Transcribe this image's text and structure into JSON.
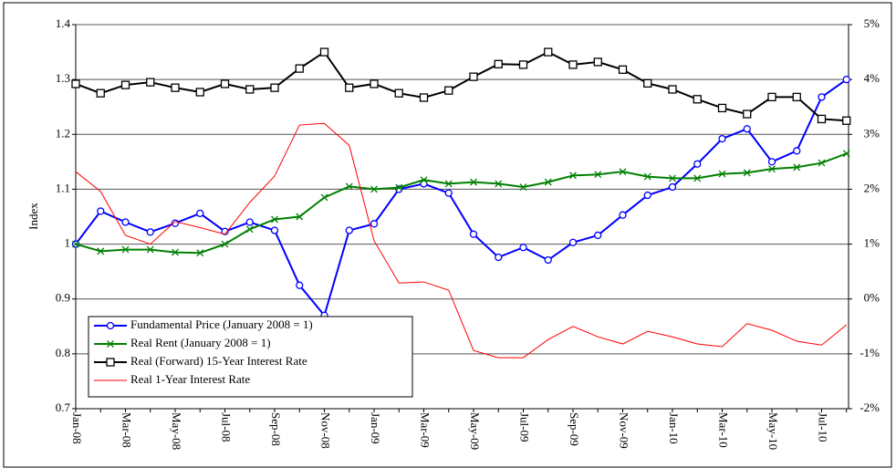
{
  "chart_data": {
    "type": "line",
    "categories": [
      "Jan-08",
      null,
      "Mar-08",
      null,
      "May-08",
      null,
      "Jul-08",
      null,
      "Sep-08",
      null,
      "Nov-08",
      null,
      "Jan-09",
      null,
      "Mar-09",
      null,
      "May-09",
      null,
      "Jul-09",
      null,
      "Sep-09",
      null,
      "Nov-09",
      null,
      "Jan-10",
      null,
      "Mar-10",
      null,
      "May-10",
      null,
      "Jul-10",
      null
    ],
    "ylabel": "Index",
    "ylim": [
      0.7,
      1.4
    ],
    "yticks": [
      0.7,
      0.8,
      0.9,
      1,
      1.1,
      1.2,
      1.3,
      1.4
    ],
    "y2lim": [
      -2,
      5
    ],
    "y2ticks": [
      {
        "value": -2,
        "label": "-2%"
      },
      {
        "value": -1,
        "label": "-1%"
      },
      {
        "value": 0,
        "label": "0%"
      },
      {
        "value": 1,
        "label": "1%"
      },
      {
        "value": 2,
        "label": "2%"
      },
      {
        "value": 3,
        "label": "3%"
      },
      {
        "value": 4,
        "label": "4%"
      },
      {
        "value": 5,
        "label": "5%"
      }
    ],
    "grid": true,
    "legend": "lower left",
    "series": [
      {
        "name": "Fundamental Price (January 2008 = 1)",
        "color": "#0000ff",
        "marker": "circle",
        "values": [
          1.0,
          1.06,
          1.04,
          1.022,
          1.038,
          1.056,
          1.023,
          1.04,
          1.025,
          0.925,
          0.87,
          1.025,
          1.037,
          1.1,
          1.11,
          1.093,
          1.018,
          0.976,
          0.994,
          0.971,
          1.003,
          1.016,
          1.053,
          1.089,
          1.104,
          1.146,
          1.192,
          1.21,
          1.15,
          1.17,
          1.268,
          1.3
        ]
      },
      {
        "name": "Real Rent (January 2008 = 1)",
        "color": "#008000",
        "marker": "x",
        "values": [
          1.0,
          0.987,
          0.99,
          0.99,
          0.985,
          0.984,
          1.0,
          1.027,
          1.045,
          1.05,
          1.085,
          1.105,
          1.1,
          1.103,
          1.117,
          1.11,
          1.113,
          1.11,
          1.104,
          1.113,
          1.125,
          1.127,
          1.132,
          1.123,
          1.12,
          1.12,
          1.128,
          1.13,
          1.137,
          1.14,
          1.148,
          1.165
        ]
      },
      {
        "name": "Real (Forward) 15-Year Interest Rate",
        "color": "#000000",
        "marker": "square",
        "axis": "y2",
        "values": [
          3.92,
          3.75,
          3.9,
          3.95,
          3.85,
          3.77,
          3.92,
          3.82,
          3.85,
          4.2,
          4.5,
          3.85,
          3.92,
          3.75,
          3.67,
          3.8,
          4.05,
          4.28,
          4.27,
          4.5,
          4.27,
          4.32,
          4.18,
          3.93,
          3.82,
          3.64,
          3.48,
          3.37,
          3.68,
          3.68,
          3.28,
          3.25
        ]
      },
      {
        "name": "Real 1-Year Interest Rate",
        "color": "#ff0000",
        "marker": "none",
        "axis": "y2",
        "values": [
          2.32,
          1.96,
          1.16,
          1.0,
          1.41,
          1.3,
          1.18,
          1.76,
          2.24,
          3.17,
          3.2,
          2.8,
          1.06,
          0.29,
          0.31,
          0.16,
          -0.94,
          -1.07,
          -1.07,
          -0.74,
          -0.5,
          -0.69,
          -0.82,
          -0.59,
          -0.69,
          -0.82,
          -0.87,
          -0.45,
          -0.57,
          -0.77,
          -0.84,
          -0.47
        ]
      }
    ]
  }
}
